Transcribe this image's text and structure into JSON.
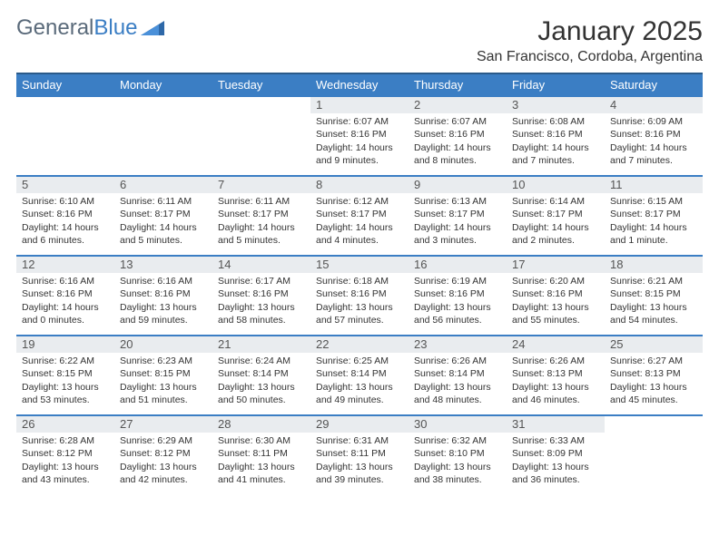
{
  "logo": {
    "word1": "General",
    "word2": "Blue"
  },
  "colors": {
    "accent": "#3b7ec4",
    "header_border": "#2a5a8a",
    "daynum_bg": "#e9ecef",
    "text": "#333333",
    "logo_gray": "#5a6a7a",
    "white": "#ffffff"
  },
  "title": {
    "month_year": "January 2025",
    "location": "San Francisco, Cordoba, Argentina"
  },
  "day_headers": [
    "Sunday",
    "Monday",
    "Tuesday",
    "Wednesday",
    "Thursday",
    "Friday",
    "Saturday"
  ],
  "typography": {
    "month_fontsize": 30,
    "location_fontsize": 16,
    "header_fontsize": 13,
    "daynum_fontsize": 13,
    "cell_fontsize": 10.5
  },
  "weeks": [
    [
      {
        "empty": true
      },
      {
        "empty": true
      },
      {
        "empty": true
      },
      {
        "day": "1",
        "l1": "Sunrise: 6:07 AM",
        "l2": "Sunset: 8:16 PM",
        "l3": "Daylight: 14 hours",
        "l4": "and 9 minutes."
      },
      {
        "day": "2",
        "l1": "Sunrise: 6:07 AM",
        "l2": "Sunset: 8:16 PM",
        "l3": "Daylight: 14 hours",
        "l4": "and 8 minutes."
      },
      {
        "day": "3",
        "l1": "Sunrise: 6:08 AM",
        "l2": "Sunset: 8:16 PM",
        "l3": "Daylight: 14 hours",
        "l4": "and 7 minutes."
      },
      {
        "day": "4",
        "l1": "Sunrise: 6:09 AM",
        "l2": "Sunset: 8:16 PM",
        "l3": "Daylight: 14 hours",
        "l4": "and 7 minutes."
      }
    ],
    [
      {
        "day": "5",
        "l1": "Sunrise: 6:10 AM",
        "l2": "Sunset: 8:16 PM",
        "l3": "Daylight: 14 hours",
        "l4": "and 6 minutes."
      },
      {
        "day": "6",
        "l1": "Sunrise: 6:11 AM",
        "l2": "Sunset: 8:17 PM",
        "l3": "Daylight: 14 hours",
        "l4": "and 5 minutes."
      },
      {
        "day": "7",
        "l1": "Sunrise: 6:11 AM",
        "l2": "Sunset: 8:17 PM",
        "l3": "Daylight: 14 hours",
        "l4": "and 5 minutes."
      },
      {
        "day": "8",
        "l1": "Sunrise: 6:12 AM",
        "l2": "Sunset: 8:17 PM",
        "l3": "Daylight: 14 hours",
        "l4": "and 4 minutes."
      },
      {
        "day": "9",
        "l1": "Sunrise: 6:13 AM",
        "l2": "Sunset: 8:17 PM",
        "l3": "Daylight: 14 hours",
        "l4": "and 3 minutes."
      },
      {
        "day": "10",
        "l1": "Sunrise: 6:14 AM",
        "l2": "Sunset: 8:17 PM",
        "l3": "Daylight: 14 hours",
        "l4": "and 2 minutes."
      },
      {
        "day": "11",
        "l1": "Sunrise: 6:15 AM",
        "l2": "Sunset: 8:17 PM",
        "l3": "Daylight: 14 hours",
        "l4": "and 1 minute."
      }
    ],
    [
      {
        "day": "12",
        "l1": "Sunrise: 6:16 AM",
        "l2": "Sunset: 8:16 PM",
        "l3": "Daylight: 14 hours",
        "l4": "and 0 minutes."
      },
      {
        "day": "13",
        "l1": "Sunrise: 6:16 AM",
        "l2": "Sunset: 8:16 PM",
        "l3": "Daylight: 13 hours",
        "l4": "and 59 minutes."
      },
      {
        "day": "14",
        "l1": "Sunrise: 6:17 AM",
        "l2": "Sunset: 8:16 PM",
        "l3": "Daylight: 13 hours",
        "l4": "and 58 minutes."
      },
      {
        "day": "15",
        "l1": "Sunrise: 6:18 AM",
        "l2": "Sunset: 8:16 PM",
        "l3": "Daylight: 13 hours",
        "l4": "and 57 minutes."
      },
      {
        "day": "16",
        "l1": "Sunrise: 6:19 AM",
        "l2": "Sunset: 8:16 PM",
        "l3": "Daylight: 13 hours",
        "l4": "and 56 minutes."
      },
      {
        "day": "17",
        "l1": "Sunrise: 6:20 AM",
        "l2": "Sunset: 8:16 PM",
        "l3": "Daylight: 13 hours",
        "l4": "and 55 minutes."
      },
      {
        "day": "18",
        "l1": "Sunrise: 6:21 AM",
        "l2": "Sunset: 8:15 PM",
        "l3": "Daylight: 13 hours",
        "l4": "and 54 minutes."
      }
    ],
    [
      {
        "day": "19",
        "l1": "Sunrise: 6:22 AM",
        "l2": "Sunset: 8:15 PM",
        "l3": "Daylight: 13 hours",
        "l4": "and 53 minutes."
      },
      {
        "day": "20",
        "l1": "Sunrise: 6:23 AM",
        "l2": "Sunset: 8:15 PM",
        "l3": "Daylight: 13 hours",
        "l4": "and 51 minutes."
      },
      {
        "day": "21",
        "l1": "Sunrise: 6:24 AM",
        "l2": "Sunset: 8:14 PM",
        "l3": "Daylight: 13 hours",
        "l4": "and 50 minutes."
      },
      {
        "day": "22",
        "l1": "Sunrise: 6:25 AM",
        "l2": "Sunset: 8:14 PM",
        "l3": "Daylight: 13 hours",
        "l4": "and 49 minutes."
      },
      {
        "day": "23",
        "l1": "Sunrise: 6:26 AM",
        "l2": "Sunset: 8:14 PM",
        "l3": "Daylight: 13 hours",
        "l4": "and 48 minutes."
      },
      {
        "day": "24",
        "l1": "Sunrise: 6:26 AM",
        "l2": "Sunset: 8:13 PM",
        "l3": "Daylight: 13 hours",
        "l4": "and 46 minutes."
      },
      {
        "day": "25",
        "l1": "Sunrise: 6:27 AM",
        "l2": "Sunset: 8:13 PM",
        "l3": "Daylight: 13 hours",
        "l4": "and 45 minutes."
      }
    ],
    [
      {
        "day": "26",
        "l1": "Sunrise: 6:28 AM",
        "l2": "Sunset: 8:12 PM",
        "l3": "Daylight: 13 hours",
        "l4": "and 43 minutes."
      },
      {
        "day": "27",
        "l1": "Sunrise: 6:29 AM",
        "l2": "Sunset: 8:12 PM",
        "l3": "Daylight: 13 hours",
        "l4": "and 42 minutes."
      },
      {
        "day": "28",
        "l1": "Sunrise: 6:30 AM",
        "l2": "Sunset: 8:11 PM",
        "l3": "Daylight: 13 hours",
        "l4": "and 41 minutes."
      },
      {
        "day": "29",
        "l1": "Sunrise: 6:31 AM",
        "l2": "Sunset: 8:11 PM",
        "l3": "Daylight: 13 hours",
        "l4": "and 39 minutes."
      },
      {
        "day": "30",
        "l1": "Sunrise: 6:32 AM",
        "l2": "Sunset: 8:10 PM",
        "l3": "Daylight: 13 hours",
        "l4": "and 38 minutes."
      },
      {
        "day": "31",
        "l1": "Sunrise: 6:33 AM",
        "l2": "Sunset: 8:09 PM",
        "l3": "Daylight: 13 hours",
        "l4": "and 36 minutes."
      },
      {
        "empty": true
      }
    ]
  ]
}
